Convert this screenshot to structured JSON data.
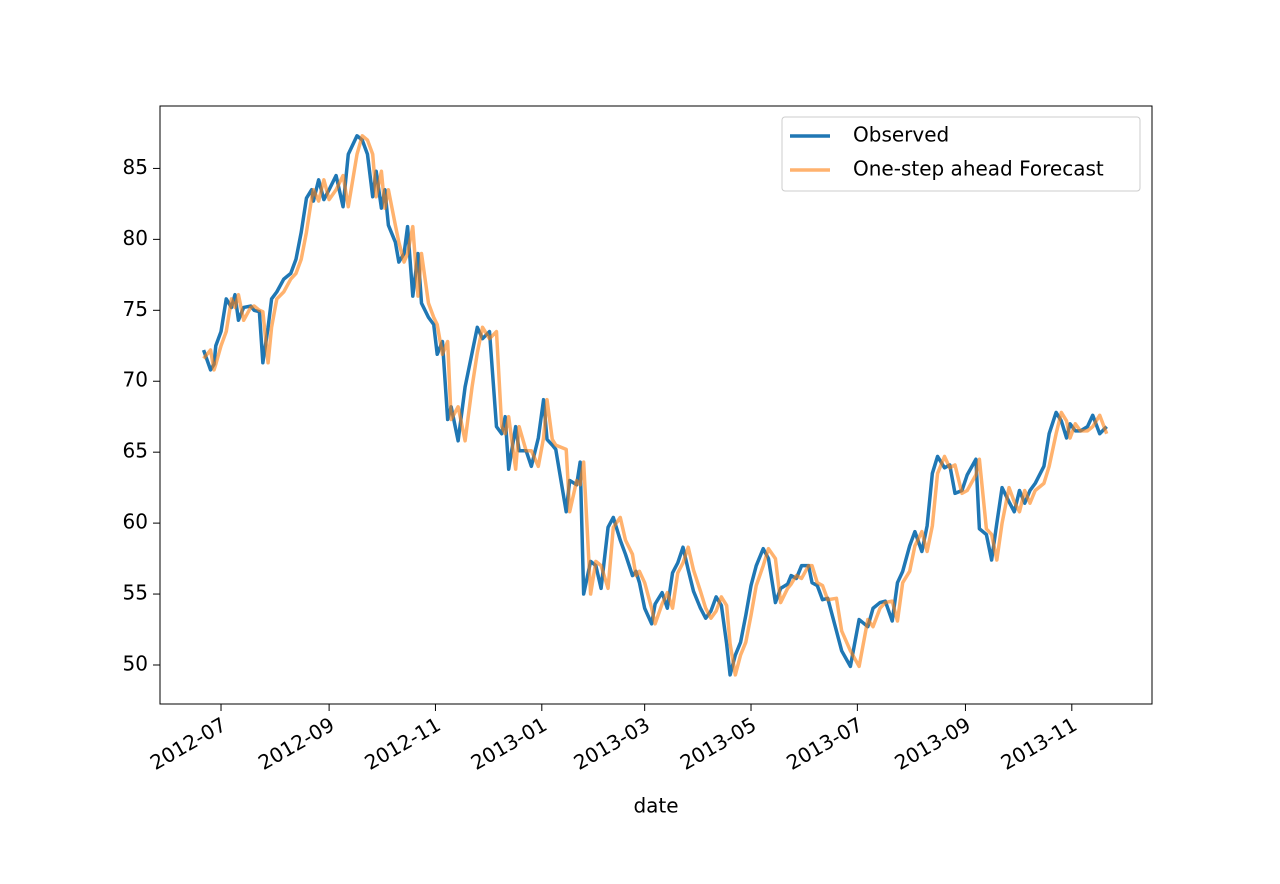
{
  "chart_data": {
    "type": "line",
    "x_label": "date",
    "x": [
      -10,
      -6,
      -4,
      -3,
      0,
      3,
      6,
      8,
      10,
      13,
      17,
      19,
      22,
      24,
      27,
      29,
      32,
      36,
      40,
      43,
      46,
      49,
      52,
      53,
      56,
      59,
      62,
      66,
      70,
      73,
      78,
      81,
      84,
      87,
      89,
      92,
      94,
      96,
      100,
      102,
      105,
      107,
      110,
      113,
      115,
      119,
      122,
      124,
      127,
      130,
      132,
      136,
      140,
      144,
      147,
      150,
      154,
      158,
      161,
      163,
      165,
      169,
      171,
      175,
      178,
      182,
      185,
      187,
      190,
      192,
      198,
      200,
      204,
      206,
      208,
      212,
      215,
      218,
      222,
      225,
      229,
      232,
      236,
      238,
      240,
      243,
      247,
      249,
      253,
      256,
      259,
      262,
      265,
      268,
      271,
      275,
      278,
      281,
      284,
      287,
      290,
      292,
      295,
      298,
      301,
      304,
      307,
      311,
      314,
      318,
      321,
      325,
      327,
      330,
      333,
      337,
      339,
      342,
      345,
      348,
      353,
      356,
      361,
      366,
      371,
      374,
      378,
      381,
      385,
      388,
      391,
      395,
      398,
      402,
      405,
      408,
      411,
      415,
      418,
      421,
      425,
      428,
      433,
      435,
      439,
      442,
      445,
      448,
      452,
      455,
      458,
      461,
      464,
      467,
      472,
      475,
      479,
      482,
      485,
      487,
      490,
      493,
      497,
      500,
      504,
      508
    ],
    "series": [
      {
        "name": "Observed",
        "color": "#1f77b4",
        "alpha": 1,
        "values": [
          72.2,
          70.8,
          71.2,
          72.5,
          73.5,
          75.8,
          75.2,
          76.1,
          74.3,
          75.2,
          75.3,
          75.0,
          74.9,
          71.3,
          73.8,
          75.8,
          76.3,
          77.2,
          77.6,
          78.6,
          80.5,
          82.9,
          83.5,
          82.7,
          84.2,
          82.8,
          83.5,
          84.5,
          82.3,
          86.0,
          87.3,
          87.0,
          86.0,
          83.0,
          84.8,
          82.2,
          83.5,
          81.0,
          79.8,
          78.4,
          79.0,
          80.9,
          76.0,
          79.0,
          75.5,
          74.5,
          74.0,
          71.9,
          72.8,
          67.3,
          68.2,
          65.8,
          69.6,
          72.0,
          73.8,
          73.0,
          73.5,
          66.8,
          66.3,
          67.5,
          63.8,
          66.8,
          65.1,
          65.1,
          64.0,
          66.0,
          68.7,
          65.9,
          65.5,
          65.2,
          60.8,
          63.0,
          62.7,
          64.3,
          55.0,
          57.3,
          57.0,
          55.4,
          59.7,
          60.4,
          58.8,
          57.8,
          56.3,
          56.6,
          55.8,
          54.0,
          52.9,
          54.3,
          55.1,
          54.0,
          56.5,
          57.2,
          58.3,
          56.7,
          55.2,
          54.0,
          53.3,
          53.8,
          54.8,
          54.2,
          51.5,
          49.3,
          50.7,
          51.6,
          53.5,
          55.6,
          57.0,
          58.2,
          57.5,
          54.4,
          55.4,
          55.7,
          56.3,
          56.1,
          57.0,
          57.0,
          55.8,
          55.6,
          54.6,
          54.7,
          52.4,
          51.0,
          49.9,
          53.2,
          52.7,
          54.0,
          54.4,
          54.5,
          53.1,
          55.8,
          56.6,
          58.4,
          59.4,
          58.0,
          59.8,
          63.5,
          64.7,
          63.9,
          64.1,
          62.1,
          62.3,
          63.4,
          64.5,
          59.6,
          59.2,
          57.4,
          60.0,
          62.5,
          61.5,
          60.8,
          62.3,
          61.4,
          62.3,
          62.8,
          64.0,
          66.3,
          67.8,
          67.2,
          66.0,
          67.0,
          66.5,
          66.5,
          66.8,
          67.6,
          66.3,
          66.8
        ]
      },
      {
        "name": "One-step ahead Forecast",
        "color": "#ff7f0e",
        "alpha": 0.6,
        "values": [
          71.6,
          72.2,
          70.8,
          71.2,
          72.5,
          73.5,
          75.8,
          75.2,
          76.1,
          74.3,
          75.2,
          75.3,
          75.0,
          74.9,
          71.3,
          73.8,
          75.8,
          76.3,
          77.2,
          77.6,
          78.6,
          80.5,
          82.9,
          83.5,
          82.7,
          84.2,
          82.8,
          83.5,
          84.5,
          82.3,
          86.0,
          87.3,
          87.0,
          86.0,
          83.0,
          84.8,
          82.2,
          83.5,
          81.0,
          79.8,
          78.4,
          79.0,
          80.9,
          76.0,
          79.0,
          75.5,
          74.5,
          74.0,
          71.9,
          72.8,
          67.3,
          68.2,
          65.8,
          69.6,
          72.0,
          73.8,
          73.0,
          73.5,
          66.8,
          66.3,
          67.5,
          63.8,
          66.8,
          65.1,
          65.1,
          64.0,
          66.0,
          68.7,
          65.9,
          65.5,
          65.2,
          60.8,
          63.0,
          62.7,
          64.3,
          55.0,
          57.3,
          57.0,
          55.4,
          59.7,
          60.4,
          58.8,
          57.8,
          56.3,
          56.6,
          55.8,
          54.0,
          52.9,
          54.3,
          55.1,
          54.0,
          56.5,
          57.2,
          58.3,
          56.7,
          55.2,
          54.0,
          53.3,
          53.8,
          54.8,
          54.2,
          51.5,
          49.3,
          50.7,
          51.6,
          53.5,
          55.6,
          57.0,
          58.2,
          57.5,
          54.4,
          55.4,
          55.7,
          56.3,
          56.1,
          57.0,
          57.0,
          55.8,
          55.6,
          54.6,
          54.7,
          52.4,
          51.0,
          49.9,
          53.2,
          52.7,
          54.0,
          54.4,
          54.5,
          53.1,
          55.8,
          56.6,
          58.4,
          59.4,
          58.0,
          59.8,
          63.5,
          64.7,
          63.9,
          64.1,
          62.1,
          62.3,
          63.4,
          64.5,
          59.6,
          59.2,
          57.4,
          60.0,
          62.5,
          61.5,
          60.8,
          62.3,
          61.4,
          62.3,
          62.8,
          64.0,
          66.3,
          67.8,
          67.2,
          66.0,
          67.0,
          66.5,
          66.5,
          66.8,
          67.6,
          66.3
        ]
      }
    ],
    "xlim": [
      -35,
      534
    ],
    "xticks": [
      {
        "value": 0,
        "label": "2012-07"
      },
      {
        "value": 62,
        "label": "2012-09"
      },
      {
        "value": 123,
        "label": "2012-11"
      },
      {
        "value": 184,
        "label": "2013-01"
      },
      {
        "value": 243,
        "label": "2013-03"
      },
      {
        "value": 304,
        "label": "2013-05"
      },
      {
        "value": 365,
        "label": "2013-07"
      },
      {
        "value": 427,
        "label": "2013-09"
      },
      {
        "value": 488,
        "label": "2013-11"
      }
    ],
    "ylim": [
      47.25,
      89.4
    ],
    "yticks": [
      50,
      55,
      60,
      65,
      70,
      75,
      80,
      85
    ],
    "grid": false,
    "legend": "upper right"
  }
}
